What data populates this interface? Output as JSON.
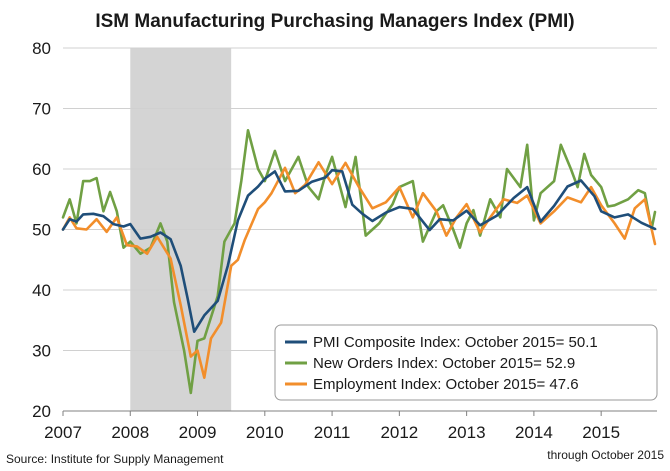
{
  "chart_data": {
    "type": "line",
    "title": "ISM Manufacturing Purchasing Managers Index (PMI)",
    "xlabel": "",
    "ylabel": "",
    "x_range": [
      2007.0,
      2015.83
    ],
    "ylim": [
      20,
      80
    ],
    "yticks": [
      20,
      30,
      40,
      50,
      60,
      70,
      80
    ],
    "xticks": [
      {
        "value": 2007,
        "label": "2007"
      },
      {
        "value": 2008,
        "label": "2008"
      },
      {
        "value": 2009,
        "label": "2009"
      },
      {
        "value": 2010,
        "label": "2010"
      },
      {
        "value": 2011,
        "label": "2011"
      },
      {
        "value": 2012,
        "label": "2012"
      },
      {
        "value": 2013,
        "label": "2013"
      },
      {
        "value": 2014,
        "label": "2014"
      },
      {
        "value": 2015,
        "label": "2015"
      }
    ],
    "grid": true,
    "recession_band": [
      2008.0,
      2009.5
    ],
    "legend_position": "bottom-right",
    "source": "Source: Institute for Supply Management",
    "footnote": "through October 2015",
    "series": [
      {
        "name": "PMI Composite Index: October 2015= 50.1",
        "color": "#1f4e79",
        "x": [
          2007.0,
          2007.1,
          2007.2,
          2007.3,
          2007.45,
          2007.6,
          2007.75,
          2007.9,
          2008.0,
          2008.15,
          2008.3,
          2008.45,
          2008.6,
          2008.75,
          2008.85,
          2008.95,
          2009.1,
          2009.3,
          2009.45,
          2009.6,
          2009.75,
          2009.9,
          2010.0,
          2010.15,
          2010.3,
          2010.5,
          2010.7,
          2010.9,
          2011.0,
          2011.15,
          2011.3,
          2011.45,
          2011.6,
          2011.8,
          2012.0,
          2012.2,
          2012.45,
          2012.6,
          2012.8,
          2013.0,
          2013.2,
          2013.45,
          2013.7,
          2013.9,
          2014.1,
          2014.3,
          2014.5,
          2014.7,
          2014.9,
          2015.0,
          2015.2,
          2015.4,
          2015.6,
          2015.8
        ],
        "y": [
          50.0,
          51.7,
          51.3,
          52.5,
          52.6,
          52.2,
          50.9,
          50.5,
          50.9,
          48.5,
          48.8,
          49.5,
          48.4,
          44.0,
          38.7,
          33.1,
          35.8,
          38.2,
          44.0,
          51.5,
          55.6,
          57.1,
          58.4,
          59.6,
          56.3,
          56.4,
          57.9,
          58.6,
          59.8,
          59.6,
          54.1,
          52.6,
          51.4,
          52.8,
          53.7,
          53.4,
          49.9,
          51.7,
          51.5,
          53.1,
          50.7,
          52.3,
          55.2,
          57.0,
          51.3,
          53.9,
          57.1,
          58.1,
          55.5,
          53.0,
          52.0,
          52.5,
          51.1,
          50.1
        ]
      },
      {
        "name": "New Orders Index: October 2015= 52.9",
        "color": "#70a044",
        "x": [
          2007.0,
          2007.1,
          2007.2,
          2007.3,
          2007.4,
          2007.5,
          2007.6,
          2007.7,
          2007.8,
          2007.9,
          2008.0,
          2008.15,
          2008.3,
          2008.45,
          2008.55,
          2008.65,
          2008.8,
          2008.9,
          2009.0,
          2009.1,
          2009.3,
          2009.4,
          2009.55,
          2009.65,
          2009.75,
          2009.9,
          2010.0,
          2010.15,
          2010.3,
          2010.5,
          2010.65,
          2010.8,
          2010.9,
          2011.0,
          2011.2,
          2011.35,
          2011.5,
          2011.7,
          2011.9,
          2012.0,
          2012.2,
          2012.35,
          2012.55,
          2012.65,
          2012.8,
          2012.9,
          2013.0,
          2013.1,
          2013.2,
          2013.35,
          2013.5,
          2013.6,
          2013.8,
          2013.9,
          2014.0,
          2014.1,
          2014.3,
          2014.4,
          2014.55,
          2014.65,
          2014.75,
          2014.85,
          2015.0,
          2015.1,
          2015.2,
          2015.4,
          2015.55,
          2015.65,
          2015.75,
          2015.8
        ],
        "y": [
          52.0,
          55.0,
          51.0,
          58.0,
          58.0,
          58.5,
          53.0,
          56.2,
          53.0,
          47.0,
          48.0,
          46.0,
          47.0,
          51.0,
          48.0,
          38.0,
          30.0,
          23.0,
          31.6,
          32.0,
          39.0,
          48.0,
          51.0,
          58.0,
          66.4,
          60.0,
          58.0,
          63.0,
          58.0,
          62.0,
          57.0,
          55.0,
          59.0,
          62.0,
          53.7,
          62.0,
          49.0,
          51.0,
          54.2,
          57.0,
          58.0,
          48.0,
          53.0,
          54.0,
          50.0,
          47.0,
          51.0,
          53.2,
          49.0,
          55.0,
          52.0,
          60.0,
          57.0,
          64.0,
          51.5,
          56.0,
          58.0,
          64.0,
          60.0,
          57.0,
          62.5,
          59.0,
          57.0,
          53.8,
          54.0,
          55.0,
          56.5,
          56.0,
          50.1,
          52.9
        ]
      },
      {
        "name": "Employment Index: October 2015= 47.6",
        "color": "#f28e2b",
        "x": [
          2007.0,
          2007.1,
          2007.2,
          2007.35,
          2007.5,
          2007.65,
          2007.8,
          2007.95,
          2008.1,
          2008.25,
          2008.4,
          2008.6,
          2008.75,
          2008.9,
          2009.0,
          2009.1,
          2009.2,
          2009.35,
          2009.5,
          2009.6,
          2009.7,
          2009.9,
          2010.0,
          2010.1,
          2010.3,
          2010.45,
          2010.6,
          2010.8,
          2011.0,
          2011.2,
          2011.4,
          2011.6,
          2011.8,
          2012.0,
          2012.2,
          2012.35,
          2012.55,
          2012.7,
          2012.85,
          2013.0,
          2013.2,
          2013.35,
          2013.55,
          2013.75,
          2013.9,
          2014.1,
          2014.3,
          2014.5,
          2014.7,
          2014.85,
          2015.0,
          2015.2,
          2015.35,
          2015.5,
          2015.65,
          2015.8
        ],
        "y": [
          50.0,
          52.0,
          50.2,
          50.0,
          51.7,
          49.6,
          52.0,
          47.4,
          47.2,
          46.0,
          48.8,
          45.2,
          37.5,
          29.0,
          30.0,
          25.5,
          32.0,
          34.6,
          44.0,
          45.0,
          48.2,
          53.4,
          54.5,
          56.0,
          60.2,
          56.0,
          57.4,
          61.1,
          57.5,
          61.0,
          57.0,
          53.5,
          54.5,
          57.0,
          52.0,
          56.0,
          53.0,
          49.0,
          52.0,
          54.2,
          49.5,
          52.0,
          55.0,
          54.4,
          55.6,
          51.0,
          53.0,
          55.3,
          54.5,
          57.0,
          54.0,
          51.0,
          48.5,
          53.5,
          55.0,
          47.6
        ]
      }
    ]
  }
}
